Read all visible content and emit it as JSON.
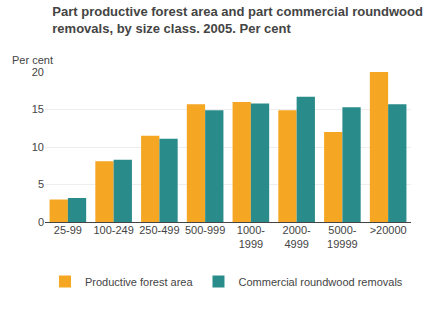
{
  "chart_data": {
    "type": "bar",
    "title": "Part productive forest area and part commercial roundwood\nremovals, by size class. 2005. Per cent",
    "ylabel": "Per cent",
    "categories": [
      "25-99",
      "100-249",
      "250-499",
      "500-999",
      "1000-\n1999",
      "2000-\n4999",
      "5000-\n19999",
      ">20000"
    ],
    "series": [
      {
        "name": "Productive forest area",
        "color": "#F5A623",
        "values": [
          3.0,
          8.1,
          11.5,
          15.7,
          16.0,
          14.9,
          12.0,
          20.0
        ]
      },
      {
        "name": "Commercial roundwood removals",
        "color": "#2A8B8B",
        "values": [
          3.2,
          8.3,
          11.1,
          14.9,
          15.8,
          16.7,
          15.3,
          15.7
        ]
      }
    ],
    "ylim": [
      0,
      20
    ],
    "yticks": [
      0,
      5,
      10,
      15,
      20
    ],
    "grid": true,
    "legend": "bottom"
  }
}
